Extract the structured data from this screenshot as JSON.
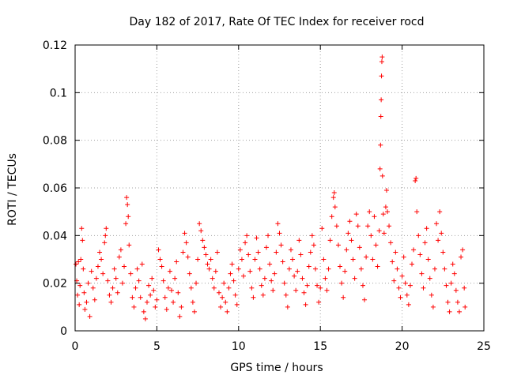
{
  "chart_data": {
    "type": "scatter",
    "title": "Day 182 of 2017, Rate Of TEC Index for receiver rocd",
    "xlabel": "GPS time / hours",
    "ylabel": "ROTI / TECUs",
    "xlim": [
      0,
      25
    ],
    "ylim": [
      0,
      0.12
    ],
    "x_ticks": [
      0,
      5,
      10,
      15,
      20,
      25
    ],
    "x_tick_labels": [
      "0",
      "5",
      "10",
      "15",
      "20",
      "25"
    ],
    "y_ticks": [
      0,
      0.02,
      0.04,
      0.06,
      0.08,
      0.1,
      0.12
    ],
    "y_tick_labels": [
      "0",
      "0.02",
      "0.04",
      "0.06",
      "0.08",
      "0.1",
      "0.12"
    ],
    "grid": true,
    "marker": "+",
    "color": "#ff0000",
    "series": [
      {
        "name": "ROTI",
        "points": [
          [
            0.05,
            0.028
          ],
          [
            0.1,
            0.021
          ],
          [
            0.15,
            0.015
          ],
          [
            0.2,
            0.029
          ],
          [
            0.25,
            0.011
          ],
          [
            0.3,
            0.019
          ],
          [
            0.35,
            0.03
          ],
          [
            0.4,
            0.043
          ],
          [
            0.45,
            0.038
          ],
          [
            0.5,
            0.026
          ],
          [
            0.55,
            0.016
          ],
          [
            0.6,
            0.009
          ],
          [
            0.7,
            0.012
          ],
          [
            0.8,
            0.02
          ],
          [
            0.9,
            0.006
          ],
          [
            1.0,
            0.025
          ],
          [
            1.1,
            0.018
          ],
          [
            1.2,
            0.013
          ],
          [
            1.3,
            0.022
          ],
          [
            1.4,
            0.027
          ],
          [
            1.5,
            0.033
          ],
          [
            1.6,
            0.03
          ],
          [
            1.7,
            0.024
          ],
          [
            1.8,
            0.037
          ],
          [
            1.85,
            0.04
          ],
          [
            1.9,
            0.043
          ],
          [
            2.0,
            0.021
          ],
          [
            2.1,
            0.015
          ],
          [
            2.2,
            0.012
          ],
          [
            2.3,
            0.018
          ],
          [
            2.4,
            0.026
          ],
          [
            2.5,
            0.022
          ],
          [
            2.6,
            0.016
          ],
          [
            2.7,
            0.031
          ],
          [
            2.8,
            0.034
          ],
          [
            2.9,
            0.02
          ],
          [
            3.0,
            0.027
          ],
          [
            3.1,
            0.045
          ],
          [
            3.15,
            0.056
          ],
          [
            3.2,
            0.053
          ],
          [
            3.25,
            0.048
          ],
          [
            3.3,
            0.036
          ],
          [
            3.4,
            0.024
          ],
          [
            3.5,
            0.014
          ],
          [
            3.6,
            0.01
          ],
          [
            3.7,
            0.018
          ],
          [
            3.8,
            0.026
          ],
          [
            3.9,
            0.021
          ],
          [
            4.0,
            0.014
          ],
          [
            4.1,
            0.028
          ],
          [
            4.2,
            0.008
          ],
          [
            4.3,
            0.005
          ],
          [
            4.4,
            0.012
          ],
          [
            4.5,
            0.019
          ],
          [
            4.6,
            0.015
          ],
          [
            4.7,
            0.022
          ],
          [
            4.8,
            0.017
          ],
          [
            4.9,
            0.01
          ],
          [
            5.0,
            0.013
          ],
          [
            5.1,
            0.034
          ],
          [
            5.2,
            0.03
          ],
          [
            5.3,
            0.027
          ],
          [
            5.4,
            0.021
          ],
          [
            5.5,
            0.014
          ],
          [
            5.6,
            0.009
          ],
          [
            5.7,
            0.018
          ],
          [
            5.8,
            0.025
          ],
          [
            5.9,
            0.017
          ],
          [
            6.0,
            0.012
          ],
          [
            6.1,
            0.022
          ],
          [
            6.2,
            0.029
          ],
          [
            6.3,
            0.016
          ],
          [
            6.4,
            0.006
          ],
          [
            6.5,
            0.01
          ],
          [
            6.6,
            0.033
          ],
          [
            6.7,
            0.041
          ],
          [
            6.8,
            0.037
          ],
          [
            6.9,
            0.031
          ],
          [
            7.0,
            0.024
          ],
          [
            7.1,
            0.018
          ],
          [
            7.2,
            0.012
          ],
          [
            7.3,
            0.008
          ],
          [
            7.4,
            0.02
          ],
          [
            7.5,
            0.03
          ],
          [
            7.6,
            0.045
          ],
          [
            7.7,
            0.042
          ],
          [
            7.8,
            0.038
          ],
          [
            7.9,
            0.035
          ],
          [
            8.0,
            0.032
          ],
          [
            8.1,
            0.028
          ],
          [
            8.2,
            0.026
          ],
          [
            8.3,
            0.03
          ],
          [
            8.4,
            0.022
          ],
          [
            8.5,
            0.018
          ],
          [
            8.6,
            0.025
          ],
          [
            8.7,
            0.033
          ],
          [
            8.8,
            0.016
          ],
          [
            8.9,
            0.01
          ],
          [
            9.0,
            0.014
          ],
          [
            9.1,
            0.02
          ],
          [
            9.2,
            0.012
          ],
          [
            9.3,
            0.008
          ],
          [
            9.4,
            0.018
          ],
          [
            9.5,
            0.024
          ],
          [
            9.6,
            0.028
          ],
          [
            9.7,
            0.021
          ],
          [
            9.8,
            0.015
          ],
          [
            9.9,
            0.011
          ],
          [
            10.0,
            0.026
          ],
          [
            10.1,
            0.034
          ],
          [
            10.2,
            0.03
          ],
          [
            10.3,
            0.023
          ],
          [
            10.4,
            0.037
          ],
          [
            10.5,
            0.04
          ],
          [
            10.6,
            0.032
          ],
          [
            10.7,
            0.025
          ],
          [
            10.8,
            0.018
          ],
          [
            10.9,
            0.014
          ],
          [
            11.0,
            0.03
          ],
          [
            11.1,
            0.039
          ],
          [
            11.2,
            0.033
          ],
          [
            11.3,
            0.026
          ],
          [
            11.4,
            0.019
          ],
          [
            11.5,
            0.015
          ],
          [
            11.6,
            0.022
          ],
          [
            11.7,
            0.035
          ],
          [
            11.8,
            0.04
          ],
          [
            11.9,
            0.028
          ],
          [
            12.0,
            0.021
          ],
          [
            12.1,
            0.017
          ],
          [
            12.2,
            0.024
          ],
          [
            12.3,
            0.033
          ],
          [
            12.4,
            0.045
          ],
          [
            12.5,
            0.041
          ],
          [
            12.6,
            0.036
          ],
          [
            12.7,
            0.029
          ],
          [
            12.8,
            0.02
          ],
          [
            12.9,
            0.015
          ],
          [
            13.0,
            0.01
          ],
          [
            13.1,
            0.026
          ],
          [
            13.2,
            0.034
          ],
          [
            13.3,
            0.03
          ],
          [
            13.4,
            0.023
          ],
          [
            13.5,
            0.017
          ],
          [
            13.6,
            0.025
          ],
          [
            13.7,
            0.038
          ],
          [
            13.8,
            0.032
          ],
          [
            13.9,
            0.022
          ],
          [
            14.0,
            0.016
          ],
          [
            14.1,
            0.011
          ],
          [
            14.2,
            0.019
          ],
          [
            14.3,
            0.027
          ],
          [
            14.4,
            0.033
          ],
          [
            14.5,
            0.04
          ],
          [
            14.6,
            0.036
          ],
          [
            14.7,
            0.026
          ],
          [
            14.8,
            0.019
          ],
          [
            14.9,
            0.012
          ],
          [
            15.0,
            0.018
          ],
          [
            15.1,
            0.043
          ],
          [
            15.2,
            0.03
          ],
          [
            15.3,
            0.022
          ],
          [
            15.4,
            0.017
          ],
          [
            15.5,
            0.026
          ],
          [
            15.6,
            0.038
          ],
          [
            15.7,
            0.048
          ],
          [
            15.8,
            0.056
          ],
          [
            15.85,
            0.058
          ],
          [
            15.9,
            0.052
          ],
          [
            16.0,
            0.044
          ],
          [
            16.1,
            0.036
          ],
          [
            16.2,
            0.027
          ],
          [
            16.3,
            0.02
          ],
          [
            16.4,
            0.014
          ],
          [
            16.5,
            0.025
          ],
          [
            16.6,
            0.034
          ],
          [
            16.7,
            0.041
          ],
          [
            16.8,
            0.046
          ],
          [
            16.9,
            0.038
          ],
          [
            17.0,
            0.03
          ],
          [
            17.1,
            0.022
          ],
          [
            17.2,
            0.049
          ],
          [
            17.3,
            0.044
          ],
          [
            17.4,
            0.035
          ],
          [
            17.5,
            0.026
          ],
          [
            17.6,
            0.019
          ],
          [
            17.7,
            0.013
          ],
          [
            17.8,
            0.031
          ],
          [
            17.9,
            0.044
          ],
          [
            18.0,
            0.05
          ],
          [
            18.1,
            0.04
          ],
          [
            18.2,
            0.03
          ],
          [
            18.3,
            0.048
          ],
          [
            18.4,
            0.036
          ],
          [
            18.5,
            0.027
          ],
          [
            18.6,
            0.042
          ],
          [
            18.65,
            0.068
          ],
          [
            18.68,
            0.078
          ],
          [
            18.7,
            0.09
          ],
          [
            18.72,
            0.097
          ],
          [
            18.74,
            0.107
          ],
          [
            18.76,
            0.113
          ],
          [
            18.78,
            0.115
          ],
          [
            18.8,
            0.065
          ],
          [
            18.85,
            0.049
          ],
          [
            18.9,
            0.041
          ],
          [
            19.0,
            0.052
          ],
          [
            19.05,
            0.059
          ],
          [
            19.1,
            0.05
          ],
          [
            19.2,
            0.044
          ],
          [
            19.3,
            0.037
          ],
          [
            19.4,
            0.029
          ],
          [
            19.5,
            0.021
          ],
          [
            19.6,
            0.033
          ],
          [
            19.7,
            0.026
          ],
          [
            19.8,
            0.018
          ],
          [
            19.9,
            0.014
          ],
          [
            20.0,
            0.023
          ],
          [
            20.1,
            0.031
          ],
          [
            20.2,
            0.02
          ],
          [
            20.3,
            0.015
          ],
          [
            20.4,
            0.011
          ],
          [
            20.5,
            0.019
          ],
          [
            20.6,
            0.028
          ],
          [
            20.7,
            0.034
          ],
          [
            20.8,
            0.063
          ],
          [
            20.85,
            0.064
          ],
          [
            20.9,
            0.05
          ],
          [
            21.0,
            0.04
          ],
          [
            21.1,
            0.032
          ],
          [
            21.2,
            0.024
          ],
          [
            21.3,
            0.018
          ],
          [
            21.4,
            0.037
          ],
          [
            21.5,
            0.043
          ],
          [
            21.6,
            0.03
          ],
          [
            21.7,
            0.022
          ],
          [
            21.8,
            0.015
          ],
          [
            21.9,
            0.01
          ],
          [
            22.0,
            0.026
          ],
          [
            22.1,
            0.045
          ],
          [
            22.2,
            0.038
          ],
          [
            22.3,
            0.05
          ],
          [
            22.4,
            0.041
          ],
          [
            22.5,
            0.033
          ],
          [
            22.6,
            0.026
          ],
          [
            22.7,
            0.019
          ],
          [
            22.8,
            0.012
          ],
          [
            22.9,
            0.008
          ],
          [
            23.0,
            0.02
          ],
          [
            23.1,
            0.028
          ],
          [
            23.2,
            0.024
          ],
          [
            23.3,
            0.017
          ],
          [
            23.4,
            0.012
          ],
          [
            23.5,
            0.008
          ],
          [
            23.6,
            0.031
          ],
          [
            23.7,
            0.034
          ],
          [
            23.8,
            0.018
          ],
          [
            23.85,
            0.01
          ]
        ]
      }
    ]
  }
}
